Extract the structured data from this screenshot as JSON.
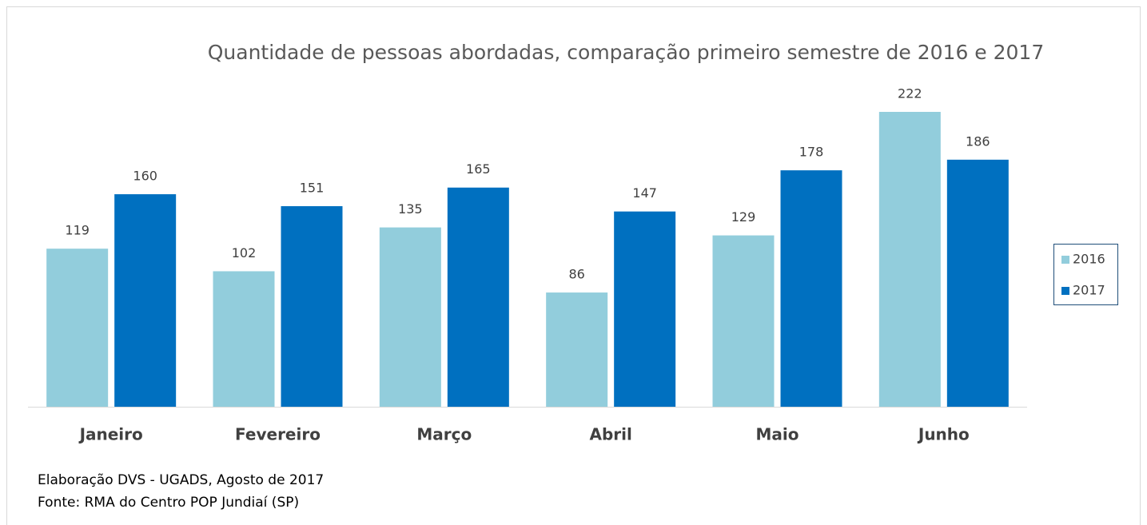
{
  "chart_data": {
    "type": "bar",
    "title": "Quantidade de pessoas abordadas, comparação primeiro semestre de 2016 e 2017",
    "categories": [
      "Janeiro",
      "Fevereiro",
      "Março",
      "Abril",
      "Maio",
      "Junho"
    ],
    "series": [
      {
        "name": "2016",
        "color": "#92cddc",
        "values": [
          119,
          102,
          135,
          86,
          129,
          222
        ]
      },
      {
        "name": "2017",
        "color": "#0070c0",
        "values": [
          160,
          151,
          165,
          147,
          178,
          186
        ]
      }
    ],
    "legend": "right",
    "annotations": [
      "Elaboração DVS - UGADS, Agosto de 2017",
      "Fonte: RMA do Centro POP Jundiaí (SP)"
    ]
  }
}
